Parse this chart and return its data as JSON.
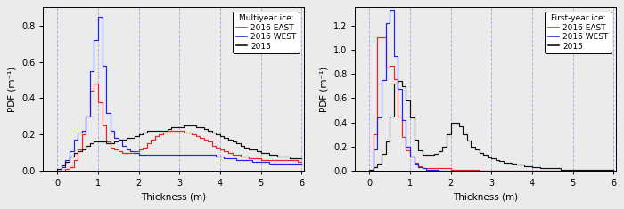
{
  "myi_title": "Multiyear ice:",
  "fyi_title": "First-year ice:",
  "legend_labels": [
    "2016 EAST",
    "2016 WEST",
    "2015"
  ],
  "colors": [
    "#ee2222",
    "#2222ee",
    "#111111"
  ],
  "xlabel": "Thickness (m)",
  "ylabel_myi": "PDF (m⁻¹)",
  "ylabel_fyi": "PDF (m⁻¹)",
  "myi_xlim": [
    -0.35,
    6.05
  ],
  "fyi_xlim": [
    -0.35,
    6.05
  ],
  "myi_ylim": [
    0.0,
    0.9
  ],
  "fyi_ylim": [
    0.0,
    1.35
  ],
  "myi_yticks": [
    0.0,
    0.2,
    0.4,
    0.6,
    0.8
  ],
  "fyi_yticks": [
    0.0,
    0.2,
    0.4,
    0.6,
    0.8,
    1.0,
    1.2
  ],
  "xticks": [
    0,
    1,
    2,
    3,
    4,
    5,
    6
  ],
  "grid_color": "#b0b0dd",
  "bg_color": "#ebebeb",
  "myi_east_x": [
    0.0,
    0.1,
    0.2,
    0.3,
    0.4,
    0.5,
    0.6,
    0.7,
    0.8,
    0.9,
    1.0,
    1.1,
    1.2,
    1.3,
    1.4,
    1.5,
    1.6,
    1.7,
    1.8,
    1.9,
    2.0,
    2.1,
    2.2,
    2.3,
    2.4,
    2.5,
    2.6,
    2.7,
    2.8,
    2.9,
    3.0,
    3.1,
    3.2,
    3.3,
    3.4,
    3.5,
    3.6,
    3.7,
    3.8,
    3.9,
    4.0,
    4.1,
    4.2,
    4.3,
    4.4,
    4.5,
    4.6,
    4.7,
    4.8,
    4.9,
    5.0,
    5.1,
    5.2,
    5.3,
    5.4,
    5.5,
    5.6,
    5.7,
    5.8,
    5.9,
    6.0
  ],
  "myi_east_y": [
    0.0,
    0.0,
    0.0,
    0.01,
    0.02,
    0.06,
    0.12,
    0.2,
    0.3,
    0.44,
    0.48,
    0.38,
    0.25,
    0.16,
    0.13,
    0.12,
    0.11,
    0.1,
    0.1,
    0.1,
    0.11,
    0.12,
    0.13,
    0.15,
    0.17,
    0.19,
    0.2,
    0.21,
    0.22,
    0.22,
    0.22,
    0.22,
    0.21,
    0.21,
    0.2,
    0.19,
    0.18,
    0.17,
    0.16,
    0.14,
    0.13,
    0.12,
    0.11,
    0.1,
    0.09,
    0.09,
    0.08,
    0.08,
    0.07,
    0.07,
    0.07,
    0.06,
    0.06,
    0.06,
    0.06,
    0.06,
    0.06,
    0.06,
    0.06,
    0.06,
    0.05
  ],
  "myi_west_x": [
    0.0,
    0.1,
    0.2,
    0.3,
    0.4,
    0.5,
    0.6,
    0.7,
    0.8,
    0.9,
    1.0,
    1.1,
    1.2,
    1.3,
    1.4,
    1.5,
    1.6,
    1.7,
    1.8,
    1.9,
    2.0,
    2.1,
    2.2,
    2.3,
    2.4,
    2.5,
    2.6,
    2.7,
    2.8,
    2.9,
    3.0,
    3.1,
    3.2,
    3.3,
    3.4,
    3.5,
    3.6,
    3.7,
    3.8,
    3.9,
    4.0,
    4.1,
    4.2,
    4.3,
    4.4,
    4.5,
    4.6,
    4.7,
    4.8,
    4.9,
    5.0,
    5.1,
    5.2,
    5.3,
    5.4,
    5.5,
    5.6,
    5.7,
    5.8,
    5.9,
    6.0
  ],
  "myi_west_y": [
    0.0,
    0.0,
    0.02,
    0.06,
    0.11,
    0.17,
    0.21,
    0.22,
    0.3,
    0.55,
    0.72,
    0.85,
    0.58,
    0.32,
    0.22,
    0.18,
    0.17,
    0.14,
    0.12,
    0.11,
    0.1,
    0.09,
    0.09,
    0.09,
    0.09,
    0.09,
    0.09,
    0.09,
    0.09,
    0.09,
    0.09,
    0.09,
    0.09,
    0.09,
    0.09,
    0.09,
    0.09,
    0.09,
    0.09,
    0.09,
    0.08,
    0.08,
    0.07,
    0.07,
    0.07,
    0.06,
    0.06,
    0.06,
    0.06,
    0.05,
    0.05,
    0.05,
    0.05,
    0.04,
    0.04,
    0.04,
    0.04,
    0.04,
    0.04,
    0.04,
    0.04
  ],
  "myi_2015_x": [
    0.0,
    0.1,
    0.2,
    0.3,
    0.4,
    0.5,
    0.6,
    0.7,
    0.8,
    0.9,
    1.0,
    1.1,
    1.2,
    1.3,
    1.4,
    1.5,
    1.6,
    1.7,
    1.8,
    1.9,
    2.0,
    2.1,
    2.2,
    2.3,
    2.4,
    2.5,
    2.6,
    2.7,
    2.8,
    2.9,
    3.0,
    3.1,
    3.2,
    3.3,
    3.4,
    3.5,
    3.6,
    3.7,
    3.8,
    3.9,
    4.0,
    4.1,
    4.2,
    4.3,
    4.4,
    4.5,
    4.6,
    4.7,
    4.8,
    4.9,
    5.0,
    5.1,
    5.2,
    5.3,
    5.4,
    5.5,
    5.6,
    5.7,
    5.8,
    5.9,
    6.0
  ],
  "myi_2015_y": [
    0.0,
    0.01,
    0.03,
    0.05,
    0.08,
    0.1,
    0.11,
    0.12,
    0.14,
    0.15,
    0.16,
    0.16,
    0.16,
    0.15,
    0.15,
    0.16,
    0.17,
    0.17,
    0.18,
    0.18,
    0.19,
    0.2,
    0.21,
    0.22,
    0.22,
    0.22,
    0.22,
    0.22,
    0.23,
    0.24,
    0.24,
    0.24,
    0.25,
    0.25,
    0.25,
    0.24,
    0.24,
    0.23,
    0.22,
    0.21,
    0.2,
    0.19,
    0.18,
    0.17,
    0.16,
    0.15,
    0.14,
    0.13,
    0.12,
    0.12,
    0.11,
    0.1,
    0.1,
    0.09,
    0.09,
    0.08,
    0.08,
    0.08,
    0.07,
    0.07,
    0.07
  ],
  "fyi_east_x": [
    0.0,
    0.1,
    0.2,
    0.3,
    0.4,
    0.5,
    0.6,
    0.7,
    0.8,
    0.9,
    1.0,
    1.1,
    1.2,
    1.3,
    1.4,
    1.5,
    1.6,
    1.7,
    1.8,
    1.9,
    2.0,
    2.1,
    2.2,
    2.3,
    2.4,
    2.5,
    2.6,
    2.7,
    2.8,
    2.9,
    3.0,
    3.1,
    3.2,
    3.3,
    3.4,
    3.5,
    3.6,
    3.7,
    3.8,
    3.9,
    4.0,
    4.1,
    4.2,
    4.3,
    4.4,
    4.5,
    4.6,
    4.7,
    4.8,
    4.9,
    5.0,
    5.1,
    5.2,
    5.3,
    5.4,
    5.5,
    5.6,
    5.7,
    5.8,
    5.9,
    6.0
  ],
  "fyi_east_y": [
    0.0,
    0.0,
    0.3,
    1.1,
    1.1,
    0.85,
    0.87,
    0.76,
    0.45,
    0.28,
    0.17,
    0.12,
    0.07,
    0.04,
    0.02,
    0.02,
    0.02,
    0.02,
    0.02,
    0.02,
    0.02,
    0.01,
    0.01,
    0.01,
    0.01,
    0.01,
    0.01,
    0.01,
    0.0,
    0.0,
    0.0,
    0.0,
    0.0,
    0.0,
    0.0,
    0.0,
    0.0,
    0.0,
    0.0,
    0.0,
    0.0,
    0.0,
    0.0,
    0.0,
    0.0,
    0.0,
    0.0,
    0.0,
    0.0,
    0.0,
    0.0,
    0.0,
    0.0,
    0.0,
    0.0,
    0.0,
    0.0,
    0.0,
    0.0,
    0.0,
    0.0
  ],
  "fyi_west_x": [
    0.0,
    0.1,
    0.2,
    0.3,
    0.4,
    0.5,
    0.6,
    0.7,
    0.8,
    0.9,
    1.0,
    1.1,
    1.2,
    1.3,
    1.4,
    1.5,
    1.6,
    1.7,
    1.8,
    1.9,
    2.0,
    2.1,
    2.2,
    2.3,
    2.4,
    2.5,
    2.6,
    2.7,
    2.8,
    2.9,
    3.0,
    3.1,
    3.2,
    3.3,
    3.4,
    3.5,
    3.6,
    3.7,
    3.8,
    3.9,
    4.0,
    4.1,
    4.2,
    4.3,
    4.4,
    4.5,
    4.6,
    4.7,
    4.8,
    4.9,
    5.0,
    5.1,
    5.2,
    5.3,
    5.4,
    5.5,
    5.6,
    5.7,
    5.8,
    5.9,
    6.0
  ],
  "fyi_west_y": [
    0.0,
    0.0,
    0.18,
    0.44,
    0.75,
    1.22,
    1.33,
    0.95,
    0.68,
    0.42,
    0.2,
    0.12,
    0.06,
    0.03,
    0.02,
    0.01,
    0.01,
    0.01,
    0.0,
    0.0,
    0.0,
    0.0,
    0.0,
    0.0,
    0.0,
    0.0,
    0.0,
    0.0,
    0.0,
    0.0,
    0.0,
    0.0,
    0.0,
    0.0,
    0.0,
    0.0,
    0.0,
    0.0,
    0.0,
    0.0,
    0.0,
    0.0,
    0.0,
    0.0,
    0.0,
    0.0,
    0.0,
    0.0,
    0.0,
    0.0,
    0.0,
    0.0,
    0.0,
    0.0,
    0.0,
    0.0,
    0.0,
    0.0,
    0.0,
    0.0,
    0.0
  ],
  "fyi_2015_x": [
    0.0,
    0.1,
    0.2,
    0.3,
    0.4,
    0.5,
    0.6,
    0.7,
    0.8,
    0.9,
    1.0,
    1.1,
    1.2,
    1.3,
    1.4,
    1.5,
    1.6,
    1.7,
    1.8,
    1.9,
    2.0,
    2.1,
    2.2,
    2.3,
    2.4,
    2.5,
    2.6,
    2.7,
    2.8,
    2.9,
    3.0,
    3.1,
    3.2,
    3.3,
    3.4,
    3.5,
    3.6,
    3.7,
    3.8,
    3.9,
    4.0,
    4.1,
    4.2,
    4.3,
    4.4,
    4.5,
    4.6,
    4.7,
    4.8,
    4.9,
    5.0,
    5.1,
    5.2,
    5.3,
    5.4,
    5.5,
    5.6,
    5.7,
    5.8,
    5.9,
    6.0
  ],
  "fyi_2015_y": [
    0.0,
    0.01,
    0.03,
    0.06,
    0.14,
    0.24,
    0.45,
    0.72,
    0.74,
    0.7,
    0.58,
    0.44,
    0.26,
    0.17,
    0.13,
    0.13,
    0.13,
    0.14,
    0.16,
    0.2,
    0.3,
    0.4,
    0.4,
    0.37,
    0.3,
    0.25,
    0.2,
    0.18,
    0.15,
    0.13,
    0.11,
    0.1,
    0.09,
    0.08,
    0.07,
    0.07,
    0.06,
    0.05,
    0.05,
    0.04,
    0.04,
    0.03,
    0.03,
    0.02,
    0.02,
    0.02,
    0.02,
    0.02,
    0.01,
    0.01,
    0.01,
    0.01,
    0.01,
    0.01,
    0.01,
    0.01,
    0.01,
    0.01,
    0.01,
    0.01,
    0.01
  ]
}
